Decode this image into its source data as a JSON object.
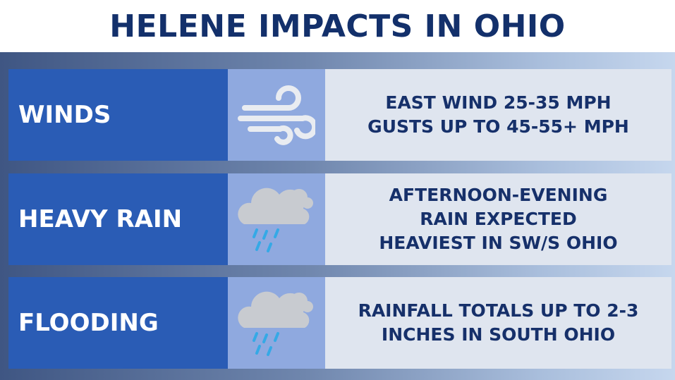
{
  "title": "HELENE IMPACTS IN OHIO",
  "colors": {
    "title": "#13306b",
    "label_bg": "#2a5cb5",
    "icon_bg": "#8fa9df",
    "text_bg": "#dfe5ef",
    "text": "#16306a"
  },
  "rows": [
    {
      "label": "WINDS",
      "icon": "wind-icon",
      "lines": [
        "EAST WIND 25-35 MPH",
        "GUSTS UP TO 45-55+ MPH"
      ]
    },
    {
      "label": "HEAVY RAIN",
      "icon": "rain-cloud-icon",
      "lines": [
        "AFTERNOON-EVENING",
        "RAIN EXPECTED",
        "HEAVIEST IN SW/S OHIO"
      ]
    },
    {
      "label": "FLOODING",
      "icon": "rain-cloud-icon",
      "lines": [
        "RAINFALL TOTALS UP TO 2-3",
        "INCHES IN SOUTH OHIO"
      ]
    }
  ]
}
